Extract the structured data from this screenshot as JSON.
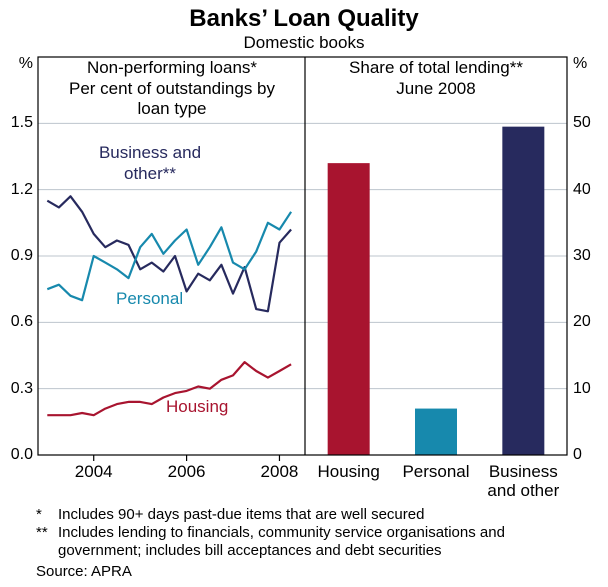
{
  "title": "Banks’ Loan Quality",
  "subtitle": "Domestic books",
  "footnotes": [
    {
      "marker": "*",
      "text": "Includes 90+ days past-due items that are well secured"
    },
    {
      "marker": "**",
      "text": "Includes lending to financials, community service organisations and government; includes bill acceptances and debt securities"
    }
  ],
  "source": "Source: APRA",
  "colors": {
    "housing_red": "#a8142f",
    "personal_teal": "#1789ad",
    "business_navy": "#272a5e",
    "gridline": "#bdc5cd",
    "axis": "#000000"
  },
  "chart_data": [
    {
      "type": "line",
      "title": "Non-performing loans*",
      "subtitle": "Per cent of outstandings by loan type",
      "ylabel": "%",
      "ylim": [
        0,
        1.8
      ],
      "yticks": [
        0,
        0.3,
        0.6,
        0.9,
        1.2,
        1.5
      ],
      "ytick_labels": [
        "0.0",
        "0.3",
        "0.6",
        "0.9",
        "1.2",
        "1.5"
      ],
      "xlim": [
        2002.8,
        2008.55
      ],
      "xticks": [
        2004,
        2006,
        2008
      ],
      "xtick_labels": [
        "2004",
        "2006",
        "2008"
      ],
      "grid": true,
      "series": [
        {
          "name": "Business and other**",
          "color": "#272a5e",
          "x": [
            2003,
            2003.25,
            2003.5,
            2003.75,
            2004,
            2004.25,
            2004.5,
            2004.75,
            2005,
            2005.25,
            2005.5,
            2005.75,
            2006,
            2006.25,
            2006.5,
            2006.75,
            2007,
            2007.25,
            2007.5,
            2007.75,
            2008,
            2008.25
          ],
          "y": [
            1.15,
            1.12,
            1.17,
            1.1,
            1.0,
            0.94,
            0.97,
            0.95,
            0.84,
            0.87,
            0.83,
            0.9,
            0.74,
            0.82,
            0.79,
            0.86,
            0.73,
            0.85,
            0.66,
            0.65,
            0.96,
            1.02
          ]
        },
        {
          "name": "Personal",
          "color": "#1789ad",
          "x": [
            2003,
            2003.25,
            2003.5,
            2003.75,
            2004,
            2004.25,
            2004.5,
            2004.75,
            2005,
            2005.25,
            2005.5,
            2005.75,
            2006,
            2006.25,
            2006.5,
            2006.75,
            2007,
            2007.25,
            2007.5,
            2007.75,
            2008,
            2008.25
          ],
          "y": [
            0.75,
            0.77,
            0.72,
            0.7,
            0.9,
            0.87,
            0.84,
            0.8,
            0.94,
            1.0,
            0.91,
            0.97,
            1.02,
            0.86,
            0.94,
            1.03,
            0.87,
            0.84,
            0.92,
            1.05,
            1.02,
            1.1
          ]
        },
        {
          "name": "Housing",
          "color": "#a8142f",
          "x": [
            2003,
            2003.25,
            2003.5,
            2003.75,
            2004,
            2004.25,
            2004.5,
            2004.75,
            2005,
            2005.25,
            2005.5,
            2005.75,
            2006,
            2006.25,
            2006.5,
            2006.75,
            2007,
            2007.25,
            2007.5,
            2007.75,
            2008,
            2008.25
          ],
          "y": [
            0.18,
            0.18,
            0.18,
            0.19,
            0.18,
            0.21,
            0.23,
            0.24,
            0.24,
            0.23,
            0.26,
            0.28,
            0.29,
            0.31,
            0.3,
            0.34,
            0.36,
            0.42,
            0.38,
            0.35,
            0.38,
            0.41
          ]
        }
      ]
    },
    {
      "type": "bar",
      "title": "Share of total lending**",
      "subtitle": "June 2008",
      "ylabel": "%",
      "ylim": [
        0,
        60
      ],
      "yticks": [
        0,
        10,
        20,
        30,
        40,
        50
      ],
      "ytick_labels": [
        "0",
        "10",
        "20",
        "30",
        "40",
        "50"
      ],
      "categories": [
        "Housing",
        "Personal",
        "Business and other"
      ],
      "values": [
        44,
        7,
        49.5
      ],
      "colors": [
        "#a8142f",
        "#1789ad",
        "#272a5e"
      ]
    }
  ]
}
